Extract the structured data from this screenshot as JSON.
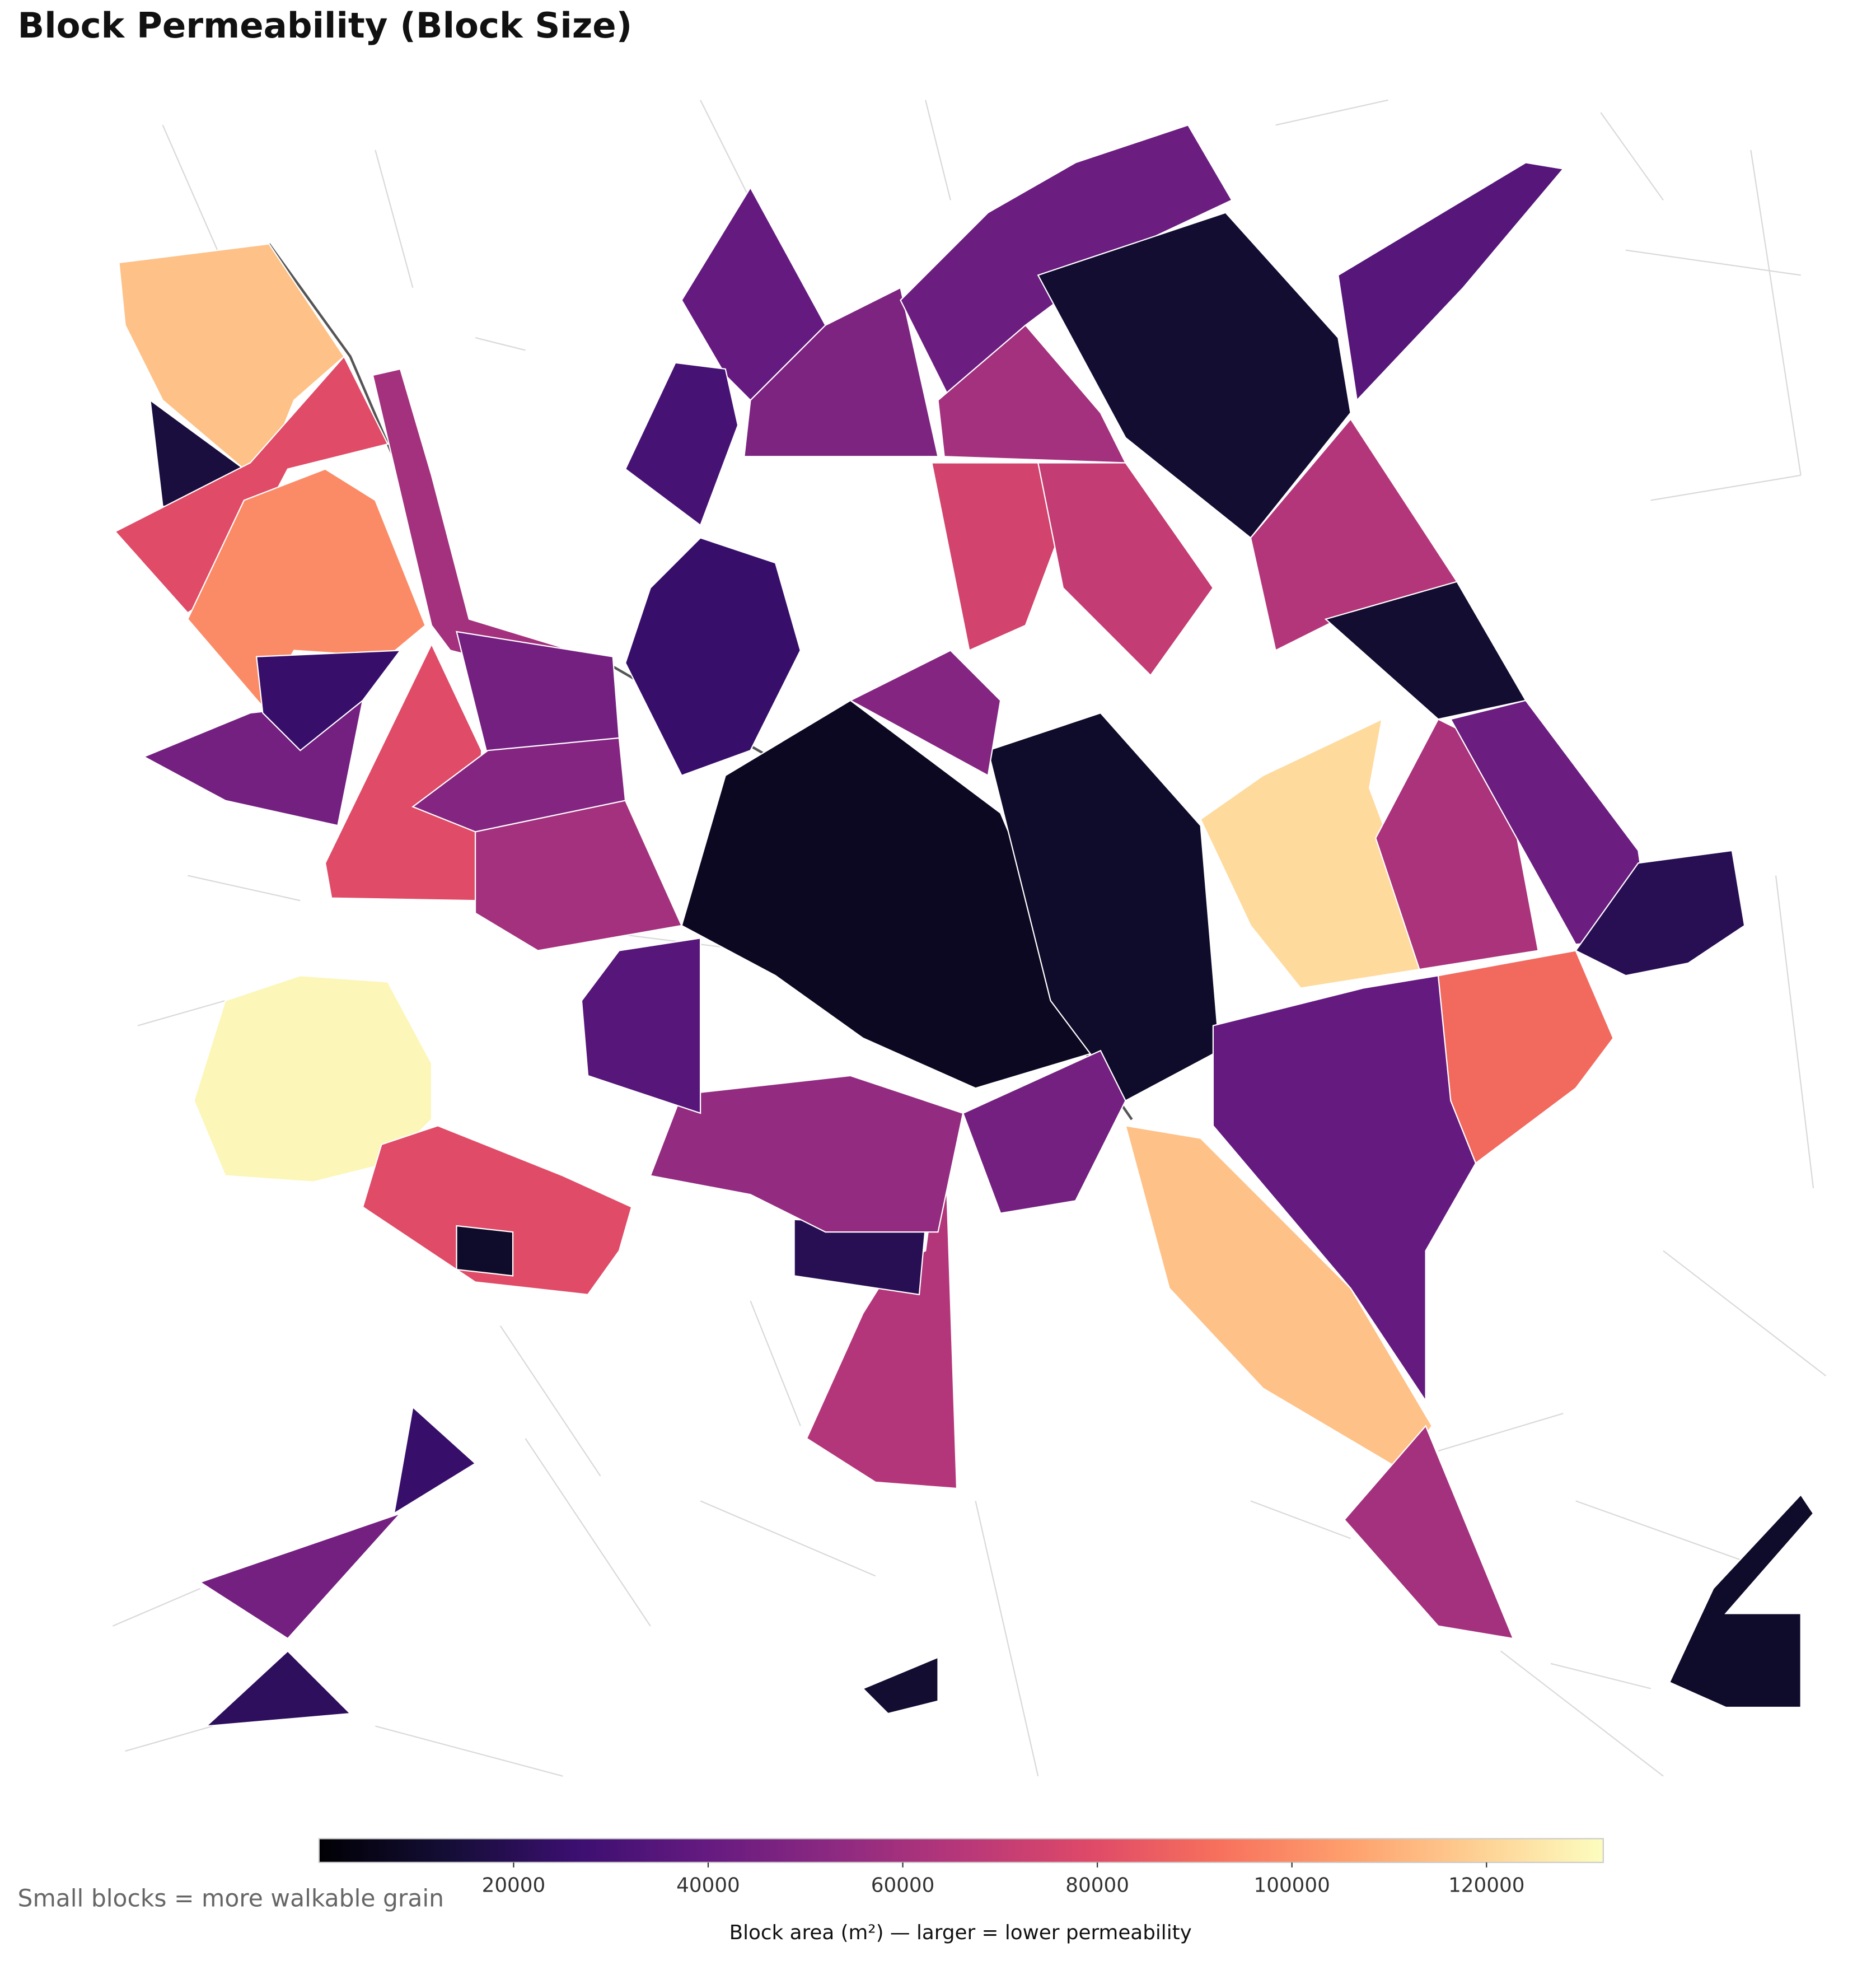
{
  "chart_data": {
    "type": "choropleth",
    "title": "Block Permeability (Block Size)",
    "colormap": "magma",
    "blocks": {
      "values": [
        115000,
        15000,
        80000,
        100000,
        45000,
        25000,
        60000,
        80000,
        45000,
        50000,
        60000,
        130000,
        80000,
        10000,
        65000,
        20000,
        55000,
        35000,
        8000,
        10000,
        25000,
        40000,
        48000,
        42000,
        60000,
        75000,
        70000,
        12000,
        35000,
        65000,
        12000,
        122000,
        62000,
        42000,
        90000,
        40000,
        115000,
        60000,
        10000,
        45000,
        25000,
        22000,
        45000,
        12000,
        20000,
        50000,
        30000
      ]
    },
    "colorbar": {
      "label": "Block area (m²) — larger = lower permeability",
      "lim": [
        0,
        132000
      ],
      "ticks": [
        20000,
        40000,
        60000,
        80000,
        100000,
        120000
      ]
    },
    "note": "Small blocks = more walkable grain"
  }
}
